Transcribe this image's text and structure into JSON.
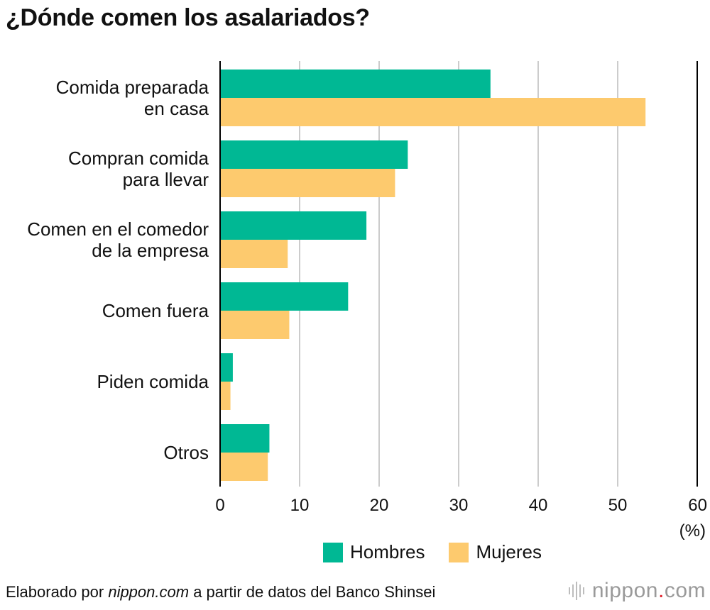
{
  "title": "¿Dónde comen los asalariados?",
  "unit_label": "(%)",
  "source": {
    "prefix": "Elaborado por ",
    "site": "nippon.com",
    "suffix": " a partir de datos del Banco Shinsei"
  },
  "brand": {
    "name": "nippon",
    "dot": ".",
    "tld": "com"
  },
  "colors": {
    "hombres": "#00b894",
    "mujeres": "#fdca6e",
    "grid": "#cccccc",
    "axis": "#000000"
  },
  "chart_data": {
    "type": "bar",
    "orientation": "horizontal",
    "title": "¿Dónde comen los asalariados?",
    "categories": [
      [
        "Comida preparada",
        "en casa"
      ],
      [
        "Compran comida",
        "para llevar"
      ],
      [
        "Comen en el comedor",
        "de la empresa"
      ],
      [
        "Comen fuera"
      ],
      [
        "Piden comida"
      ],
      [
        "Otros"
      ]
    ],
    "series": [
      {
        "name": "Hombres",
        "values": [
          34.0,
          23.6,
          18.4,
          16.1,
          1.6,
          6.2
        ]
      },
      {
        "name": "Mujeres",
        "values": [
          53.5,
          22.0,
          8.5,
          8.7,
          1.3,
          6.0
        ]
      }
    ],
    "xlim": [
      0,
      60
    ],
    "xticks": [
      0,
      10,
      20,
      30,
      40,
      50,
      60
    ],
    "xlabel": "(%)",
    "legend": "bottom-center"
  }
}
